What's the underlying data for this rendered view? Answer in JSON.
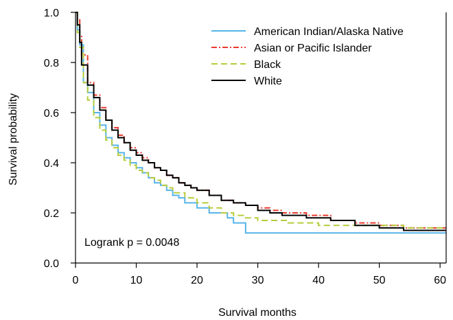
{
  "chart_data": {
    "type": "line",
    "xlabel": "Survival months",
    "ylabel": "Survival probability",
    "xlim": [
      0,
      61
    ],
    "ylim": [
      0,
      1
    ],
    "xticks": [
      0,
      10,
      20,
      30,
      40,
      50,
      60
    ],
    "yticks": [
      0.0,
      0.2,
      0.4,
      0.6,
      0.8,
      1.0
    ],
    "ytick_labels": [
      "0.0",
      "0.2",
      "0.4",
      "0.6",
      "0.8",
      "1.0"
    ],
    "grid": false,
    "legend_position": "top-right",
    "annotation": "Logrank p = 0.0048",
    "series": [
      {
        "name": "American Indian/Alaska Native",
        "color": "#56B4E9",
        "dash": "solid",
        "x": [
          0,
          0.3,
          0.7,
          1.3,
          2.0,
          3.0,
          4.0,
          5.0,
          6.0,
          7.0,
          8.0,
          9.0,
          10.0,
          11.0,
          12.0,
          13.0,
          14.0,
          15.0,
          16.0,
          17.0,
          18.0,
          20.0,
          22.0,
          25.0,
          26.0,
          28.0,
          32.0,
          40.0,
          50.0,
          61.0
        ],
        "y": [
          1.0,
          0.93,
          0.87,
          0.72,
          0.68,
          0.6,
          0.55,
          0.5,
          0.47,
          0.44,
          0.42,
          0.4,
          0.38,
          0.36,
          0.34,
          0.32,
          0.31,
          0.29,
          0.27,
          0.26,
          0.24,
          0.22,
          0.2,
          0.18,
          0.16,
          0.12,
          0.12,
          0.12,
          0.12,
          0.12
        ]
      },
      {
        "name": "Asian or Pacific Islander",
        "color": "#E8392B",
        "dash": "8,3,2,3",
        "x": [
          0,
          0.3,
          0.7,
          1.0,
          2.0,
          3.0,
          4.0,
          5.0,
          6.0,
          7.0,
          8.0,
          9.0,
          10.0,
          11.0,
          12.0,
          13.0,
          14.0,
          15.0,
          16.0,
          17.0,
          18.0,
          19.0,
          20.0,
          22.0,
          24.0,
          26.0,
          28.0,
          30.0,
          32.0,
          34.0,
          38.0,
          42.0,
          46.0,
          50.0,
          54.0,
          61.0
        ],
        "y": [
          1.0,
          0.97,
          0.91,
          0.83,
          0.72,
          0.67,
          0.62,
          0.57,
          0.54,
          0.51,
          0.48,
          0.46,
          0.44,
          0.42,
          0.4,
          0.38,
          0.37,
          0.35,
          0.34,
          0.32,
          0.31,
          0.3,
          0.29,
          0.27,
          0.25,
          0.24,
          0.23,
          0.22,
          0.21,
          0.2,
          0.19,
          0.17,
          0.16,
          0.15,
          0.14,
          0.14
        ]
      },
      {
        "name": "Black",
        "color": "#B5CC3A",
        "dash": "9,5",
        "x": [
          0,
          0.3,
          0.7,
          1.3,
          2.0,
          3.0,
          4.0,
          5.0,
          6.0,
          7.0,
          8.0,
          9.0,
          10.0,
          11.0,
          12.0,
          13.0,
          14.0,
          15.0,
          16.0,
          18.0,
          20.0,
          22.0,
          24.0,
          26.0,
          28.0,
          30.0,
          35.0,
          40.0,
          46.0,
          54.0,
          61.0
        ],
        "y": [
          1.0,
          0.92,
          0.86,
          0.72,
          0.65,
          0.58,
          0.53,
          0.49,
          0.46,
          0.43,
          0.41,
          0.39,
          0.37,
          0.36,
          0.34,
          0.33,
          0.31,
          0.3,
          0.28,
          0.26,
          0.24,
          0.22,
          0.2,
          0.19,
          0.18,
          0.17,
          0.16,
          0.15,
          0.15,
          0.14,
          0.14
        ]
      },
      {
        "name": "White",
        "color": "#000000",
        "dash": "solid",
        "x": [
          0,
          0.3,
          0.7,
          1.0,
          2.0,
          3.0,
          4.0,
          5.0,
          6.0,
          7.0,
          8.0,
          9.0,
          10.0,
          11.0,
          12.0,
          13.0,
          14.0,
          15.0,
          16.0,
          17.0,
          18.0,
          19.0,
          20.0,
          22.0,
          24.0,
          26.0,
          28.0,
          30.0,
          32.0,
          34.0,
          38.0,
          42.0,
          46.0,
          50.0,
          54.0,
          61.0
        ],
        "y": [
          1.0,
          0.95,
          0.88,
          0.79,
          0.71,
          0.66,
          0.61,
          0.57,
          0.53,
          0.5,
          0.48,
          0.45,
          0.43,
          0.41,
          0.4,
          0.38,
          0.37,
          0.35,
          0.34,
          0.32,
          0.31,
          0.3,
          0.29,
          0.27,
          0.25,
          0.24,
          0.23,
          0.21,
          0.2,
          0.19,
          0.18,
          0.17,
          0.15,
          0.14,
          0.13,
          0.13
        ]
      }
    ]
  }
}
